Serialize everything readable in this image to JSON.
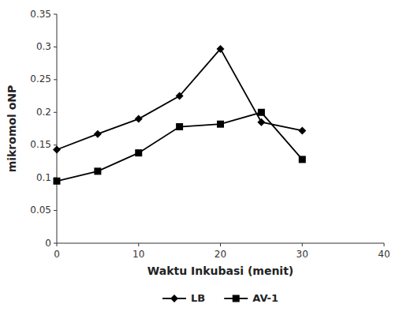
{
  "chart_data": {
    "type": "line",
    "x": [
      0,
      5,
      10,
      15,
      20,
      25,
      30
    ],
    "series": [
      {
        "name": "LB",
        "color": "#000000",
        "marker": "diamond",
        "values": [
          0.143,
          0.167,
          0.19,
          0.225,
          0.297,
          0.185,
          0.172
        ]
      },
      {
        "name": "AV-1",
        "color": "#000000",
        "marker": "square",
        "values": [
          0.095,
          0.11,
          0.138,
          0.178,
          0.182,
          0.2,
          0.128
        ]
      }
    ],
    "xlabel": "Waktu Inkubasi (menit)",
    "ylabel": "mikromol oNP",
    "xlim": [
      0,
      40
    ],
    "ylim": [
      0,
      0.35
    ],
    "xticks": [
      0,
      10,
      20,
      30,
      40
    ],
    "yticks": [
      0,
      0.05,
      0.1,
      0.15,
      0.2,
      0.25,
      0.3,
      0.35
    ],
    "grid": false,
    "legend": "bottom"
  }
}
